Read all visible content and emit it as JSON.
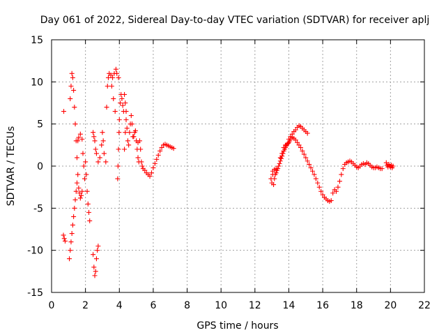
{
  "colors": {
    "series": "#ff0000",
    "grid": "#a0a0a0",
    "frame": "#000000"
  },
  "chart_data": {
    "type": "scatter",
    "title": "Day 061 of 2022, Sidereal Day-to-day VTEC variation (SDTVAR) for receiver aplj",
    "xlabel": "GPS time / hours",
    "ylabel": "SDTVAR / TECUs",
    "xlim": [
      0,
      22
    ],
    "ylim": [
      -15,
      15
    ],
    "xticks": [
      0,
      2,
      4,
      6,
      8,
      10,
      12,
      14,
      16,
      18,
      20,
      22
    ],
    "yticks": [
      -15,
      -10,
      -5,
      0,
      5,
      10,
      15
    ],
    "grid": true,
    "marker": "+",
    "series": [
      {
        "name": "SDTVAR",
        "points": [
          [
            0.72,
            6.5
          ],
          [
            0.7,
            -8.2
          ],
          [
            0.75,
            -8.6
          ],
          [
            0.8,
            -8.9
          ],
          [
            1.05,
            -11.0
          ],
          [
            1.1,
            -10.0
          ],
          [
            1.15,
            -9.0
          ],
          [
            1.2,
            -8.0
          ],
          [
            1.25,
            -7.0
          ],
          [
            1.3,
            -6.0
          ],
          [
            1.35,
            -5.0
          ],
          [
            1.4,
            -4.0
          ],
          [
            1.45,
            -3.0
          ],
          [
            1.5,
            -2.0
          ],
          [
            1.1,
            8.0
          ],
          [
            1.15,
            9.5
          ],
          [
            1.2,
            11.0
          ],
          [
            1.25,
            10.5
          ],
          [
            1.3,
            9.0
          ],
          [
            1.35,
            7.0
          ],
          [
            1.4,
            5.0
          ],
          [
            1.45,
            3.0
          ],
          [
            1.5,
            1.0
          ],
          [
            1.55,
            -1.0
          ],
          [
            1.6,
            -2.6
          ],
          [
            1.65,
            -3.2
          ],
          [
            1.7,
            -3.8
          ],
          [
            1.75,
            -3.5
          ],
          [
            1.8,
            -3.0
          ],
          [
            1.55,
            3.0
          ],
          [
            1.6,
            3.4
          ],
          [
            1.7,
            3.8
          ],
          [
            1.8,
            3.2
          ],
          [
            1.85,
            1.5
          ],
          [
            1.9,
            0.0
          ],
          [
            1.95,
            -1.5
          ],
          [
            2.0,
            0.5
          ],
          [
            2.05,
            -1.0
          ],
          [
            2.1,
            -3.0
          ],
          [
            2.15,
            -4.5
          ],
          [
            2.2,
            -5.5
          ],
          [
            2.25,
            -6.5
          ],
          [
            2.45,
            -10.5
          ],
          [
            2.5,
            -12.0
          ],
          [
            2.55,
            -13.0
          ],
          [
            2.6,
            -12.5
          ],
          [
            2.65,
            -11.0
          ],
          [
            2.7,
            -10.0
          ],
          [
            2.75,
            -9.5
          ],
          [
            2.45,
            4.0
          ],
          [
            2.5,
            3.5
          ],
          [
            2.55,
            3.0
          ],
          [
            2.6,
            2.0
          ],
          [
            2.65,
            1.5
          ],
          [
            2.75,
            0.5
          ],
          [
            2.85,
            1.0
          ],
          [
            2.95,
            2.5
          ],
          [
            3.0,
            4.0
          ],
          [
            3.05,
            3.0
          ],
          [
            3.1,
            1.5
          ],
          [
            3.2,
            0.5
          ],
          [
            3.25,
            7.0
          ],
          [
            3.3,
            9.5
          ],
          [
            3.35,
            10.5
          ],
          [
            3.4,
            11.0
          ],
          [
            3.5,
            10.8
          ],
          [
            3.6,
            10.5
          ],
          [
            3.7,
            11.0
          ],
          [
            3.8,
            11.5
          ],
          [
            3.85,
            11.0
          ],
          [
            3.95,
            10.5
          ],
          [
            3.55,
            9.5
          ],
          [
            3.65,
            8.0
          ],
          [
            3.75,
            6.5
          ],
          [
            3.9,
            -1.5
          ],
          [
            3.92,
            0.0
          ],
          [
            3.95,
            2.0
          ],
          [
            3.98,
            4.0
          ],
          [
            4.0,
            5.5
          ],
          [
            4.05,
            7.5
          ],
          [
            4.1,
            8.5
          ],
          [
            4.15,
            8.0
          ],
          [
            4.2,
            7.2
          ],
          [
            4.25,
            6.5
          ],
          [
            4.3,
            8.5
          ],
          [
            4.35,
            7.5
          ],
          [
            4.4,
            6.5
          ],
          [
            4.3,
            2.0
          ],
          [
            4.35,
            4.0
          ],
          [
            4.4,
            5.5
          ],
          [
            4.45,
            4.5
          ],
          [
            4.5,
            3.0
          ],
          [
            4.55,
            2.5
          ],
          [
            4.6,
            4.0
          ],
          [
            4.65,
            5.0
          ],
          [
            4.7,
            6.0
          ],
          [
            4.75,
            5.0
          ],
          [
            4.8,
            3.5
          ],
          [
            4.85,
            3.5
          ],
          [
            4.9,
            4.0
          ],
          [
            4.95,
            4.2
          ],
          [
            5.0,
            3.0
          ],
          [
            5.05,
            2.0
          ],
          [
            5.1,
            1.0
          ],
          [
            5.15,
            0.5
          ],
          [
            5.1,
            2.8
          ],
          [
            5.2,
            3.0
          ],
          [
            5.25,
            2.0
          ],
          [
            5.3,
            0.5
          ],
          [
            5.35,
            0.0
          ],
          [
            5.4,
            -0.3
          ],
          [
            5.5,
            -0.5
          ],
          [
            5.6,
            -0.8
          ],
          [
            5.7,
            -1.0
          ],
          [
            5.8,
            -1.2
          ],
          [
            5.9,
            -0.8
          ],
          [
            6.0,
            -0.2
          ],
          [
            6.1,
            0.3
          ],
          [
            6.2,
            0.8
          ],
          [
            6.3,
            1.3
          ],
          [
            6.4,
            1.8
          ],
          [
            6.5,
            2.2
          ],
          [
            6.6,
            2.5
          ],
          [
            6.7,
            2.6
          ],
          [
            6.8,
            2.5
          ],
          [
            6.9,
            2.4
          ],
          [
            7.0,
            2.3
          ],
          [
            7.1,
            2.2
          ],
          [
            7.2,
            2.1
          ],
          [
            12.95,
            -1.5
          ],
          [
            13.0,
            -2.0
          ],
          [
            13.05,
            -1.0
          ],
          [
            13.1,
            -2.2
          ],
          [
            13.15,
            -1.5
          ],
          [
            13.2,
            -1.0
          ],
          [
            13.25,
            -0.8
          ],
          [
            13.3,
            -0.5
          ],
          [
            13.05,
            -0.6
          ],
          [
            13.15,
            -0.4
          ],
          [
            13.25,
            -0.3
          ],
          [
            13.35,
            -0.3
          ],
          [
            13.4,
            0.0
          ],
          [
            13.45,
            0.3
          ],
          [
            13.5,
            0.6
          ],
          [
            13.55,
            0.9
          ],
          [
            13.6,
            1.2
          ],
          [
            13.65,
            1.5
          ],
          [
            13.7,
            1.8
          ],
          [
            13.75,
            2.0
          ],
          [
            13.8,
            2.2
          ],
          [
            13.85,
            2.4
          ],
          [
            13.9,
            2.6
          ],
          [
            13.95,
            2.7
          ],
          [
            14.0,
            2.8
          ],
          [
            13.5,
            1.0
          ],
          [
            13.6,
            1.5
          ],
          [
            13.7,
            2.2
          ],
          [
            13.8,
            2.5
          ],
          [
            14.05,
            3.0
          ],
          [
            14.1,
            3.2
          ],
          [
            14.2,
            3.4
          ],
          [
            14.3,
            3.3
          ],
          [
            14.4,
            3.1
          ],
          [
            14.5,
            2.8
          ],
          [
            14.6,
            2.5
          ],
          [
            14.7,
            2.2
          ],
          [
            14.8,
            1.8
          ],
          [
            14.9,
            1.4
          ],
          [
            15.0,
            1.0
          ],
          [
            15.1,
            0.6
          ],
          [
            15.2,
            0.2
          ],
          [
            15.3,
            -0.2
          ],
          [
            15.4,
            -0.6
          ],
          [
            15.5,
            -1.0
          ],
          [
            15.6,
            -1.5
          ],
          [
            15.7,
            -2.0
          ],
          [
            15.8,
            -2.5
          ],
          [
            15.9,
            -3.0
          ],
          [
            16.0,
            -3.4
          ],
          [
            16.1,
            -3.7
          ],
          [
            16.2,
            -3.9
          ],
          [
            16.3,
            -4.1
          ],
          [
            16.4,
            -4.2
          ],
          [
            16.5,
            -4.1
          ],
          [
            14.0,
            3.2
          ],
          [
            14.1,
            3.5
          ],
          [
            14.2,
            3.8
          ],
          [
            14.3,
            4.1
          ],
          [
            14.4,
            4.3
          ],
          [
            14.5,
            4.6
          ],
          [
            14.6,
            4.8
          ],
          [
            14.7,
            4.7
          ],
          [
            14.8,
            4.5
          ],
          [
            14.9,
            4.3
          ],
          [
            15.0,
            4.1
          ],
          [
            15.1,
            3.9
          ],
          [
            16.6,
            -3.2
          ],
          [
            16.7,
            -2.8
          ],
          [
            16.8,
            -3.0
          ],
          [
            16.9,
            -2.5
          ],
          [
            17.0,
            -1.8
          ],
          [
            17.1,
            -1.0
          ],
          [
            17.2,
            -0.3
          ],
          [
            17.3,
            0.2
          ],
          [
            17.4,
            0.4
          ],
          [
            17.5,
            0.5
          ],
          [
            17.6,
            0.6
          ],
          [
            17.7,
            0.5
          ],
          [
            17.8,
            0.3
          ],
          [
            17.9,
            0.1
          ],
          [
            18.0,
            -0.1
          ],
          [
            18.1,
            -0.2
          ],
          [
            18.2,
            0.0
          ],
          [
            18.3,
            0.2
          ],
          [
            18.4,
            0.3
          ],
          [
            18.5,
            0.2
          ],
          [
            18.6,
            0.4
          ],
          [
            18.7,
            0.3
          ],
          [
            18.8,
            0.1
          ],
          [
            18.9,
            -0.1
          ],
          [
            19.0,
            -0.2
          ],
          [
            19.1,
            -0.2
          ],
          [
            19.2,
            -0.1
          ],
          [
            19.3,
            -0.2
          ],
          [
            19.4,
            -0.3
          ],
          [
            19.5,
            -0.3
          ],
          [
            19.75,
            0.4
          ],
          [
            19.8,
            0.1
          ],
          [
            19.85,
            -0.1
          ],
          [
            19.9,
            0.2
          ],
          [
            19.95,
            0.0
          ],
          [
            20.0,
            -0.1
          ],
          [
            20.05,
            0.1
          ],
          [
            20.1,
            -0.2
          ],
          [
            20.15,
            0.0
          ]
        ]
      }
    ]
  }
}
